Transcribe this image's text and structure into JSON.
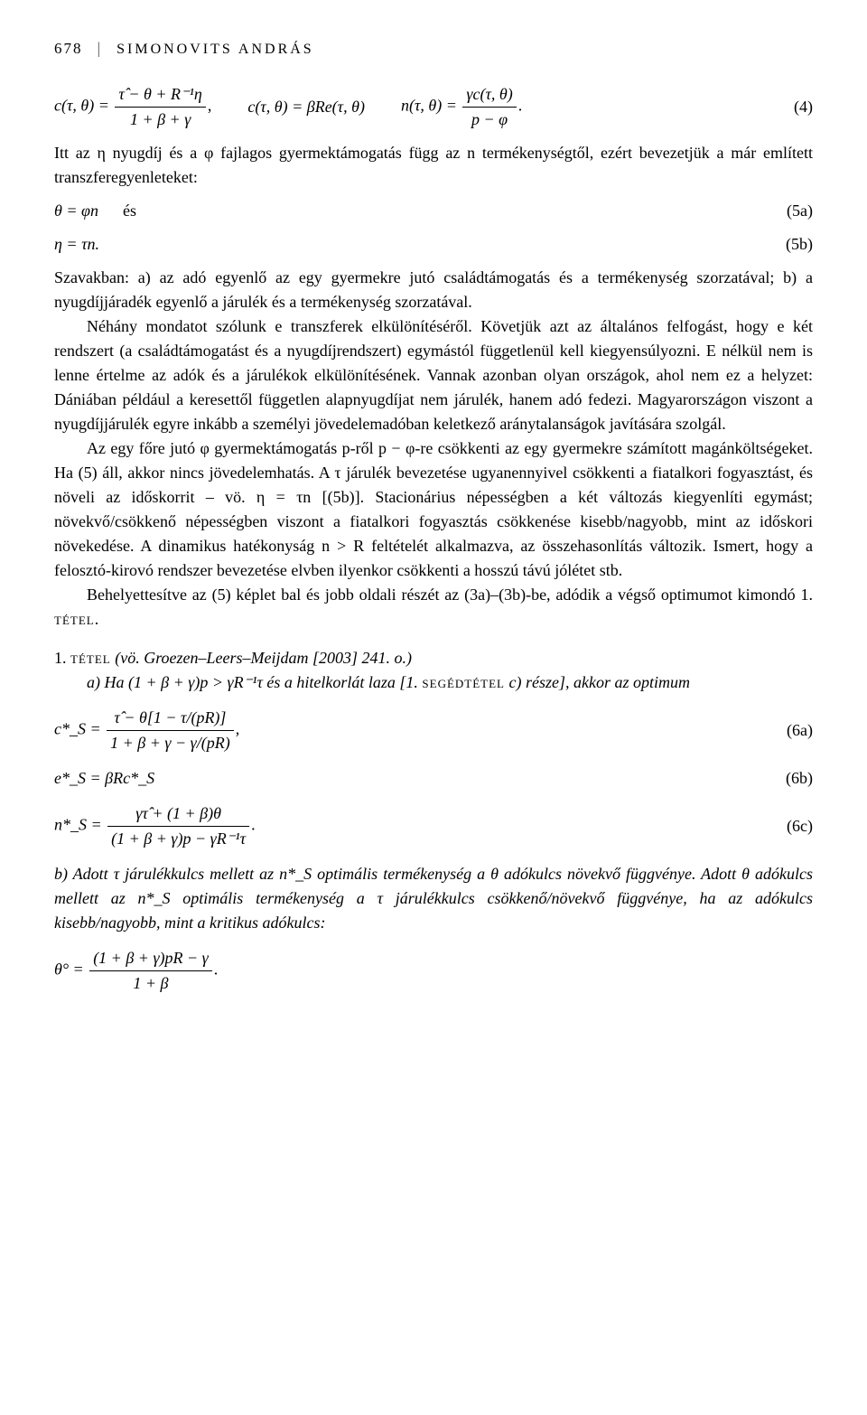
{
  "header": {
    "page_number": "678",
    "author": "SIMONOVITS ANDRÁS"
  },
  "eq4": {
    "part1_lhs": "c(τ, θ) =",
    "part1_num": "τ̂ − θ + R⁻¹η",
    "part1_den": "1 + β + γ",
    "part2": "c(τ, θ) = βRe(τ, θ)",
    "part3_lhs": "n(τ, θ) =",
    "part3_num": "γc(τ, θ)",
    "part3_den": "p − φ",
    "label": "(4)"
  },
  "para1": "Itt az η nyugdíj és a φ fajlagos gyermektámogatás függ az n termékenységtől, ezért bevezetjük a már említett transzferegyenleteket:",
  "eq5a": {
    "formula": "θ = φn",
    "conj": "és",
    "label": "(5a)"
  },
  "eq5b": {
    "formula": "η = τn.",
    "label": "(5b)"
  },
  "para2": "Szavakban: a) az adó egyenlő az egy gyermekre jutó családtámogatás és a termékenység szorzatával; b) a nyugdíjjáradék egyenlő a járulék és a termékenység szorzatával.",
  "para3": "Néhány mondatot szólunk e transzferek elkülönítéséről. Követjük azt az általános felfogást, hogy e két rendszert (a családtámogatást és a nyugdíjrendszert) egymástól függetlenül kell kiegyensúlyozni. E nélkül nem is lenne értelme az adók és a járulékok elkülönítésének. Vannak azonban olyan országok, ahol nem ez a helyzet: Dániában például a keresettől független alapnyugdíjat nem járulék, hanem adó fedezi. Magyarországon viszont a nyugdíjjárulék egyre inkább a személyi jövedelemadóban keletkező aránytalanságok javítására szolgál.",
  "para4": "Az egy főre jutó φ gyermektámogatás p-ről p − φ-re csökkenti az egy gyermekre számított magánköltségeket. Ha (5) áll, akkor nincs jövedelemhatás. A τ járulék bevezetése ugyanennyivel csökkenti a fiatalkori fogyasztást, és növeli az időskorrit – vö. η = τn [(5b)]. Stacionárius népességben a két változás kiegyenlíti egymást; növekvő/csökkenő népességben viszont a fiatalkori fogyasztás csökkenése kisebb/nagyobb, mint az időskori növekedése. A dinamikus hatékonyság n > R feltételét alkalmazva, az összehasonlítás változik. Ismert, hogy a felosztó-kirovó rendszer bevezetése elvben ilyenkor csökkenti a hosszú távú jólétet stb.",
  "para5a": "Behelyettesítve az (5) képlet bal és jobb oldali részét az (3a)–(3b)-be, adódik a végső optimumot kimondó 1. ",
  "para5b": "tétel",
  "para5c": ".",
  "tetel_head_a": "1. ",
  "tetel_head_b": "tétel",
  "tetel_cite": " (vö. Groezen–Leers–Meijdam [2003] 241. o.)",
  "tetel_a_pre": "a) Ha (1 + β + γ)p > γR⁻¹τ és a hitelkorlát laza [1. ",
  "tetel_a_seged": "segédtétel",
  "tetel_a_post": " c) része], akkor az optimum",
  "eq6a": {
    "lhs": "c*_S =",
    "num": "τ̂ − θ[1 − τ/(pR)]",
    "den": "1 + β + γ − γ/(pR)",
    "label": "(6a)"
  },
  "eq6b": {
    "formula": "e*_S = βRc*_S",
    "label": "(6b)"
  },
  "eq6c": {
    "lhs": "n*_S =",
    "num": "γτ̂ + (1 + β)θ",
    "den": "(1 + β + γ)p − γR⁻¹τ",
    "label": "(6c)"
  },
  "tetel_b": "b) Adott τ járulékkulcs mellett az n*_S optimális termékenység a θ adókulcs növekvő függvénye. Adott θ adókulcs mellett az n*_S optimális termékenység a τ járulékkulcs csökkenő/növekvő függvénye, ha az adókulcs kisebb/nagyobb, mint a kritikus adókulcs:",
  "eq_theta_circ": {
    "lhs": "θ° =",
    "num": "(1 + β + γ)pR − γ",
    "den": "1 + β",
    "suffix": "."
  }
}
